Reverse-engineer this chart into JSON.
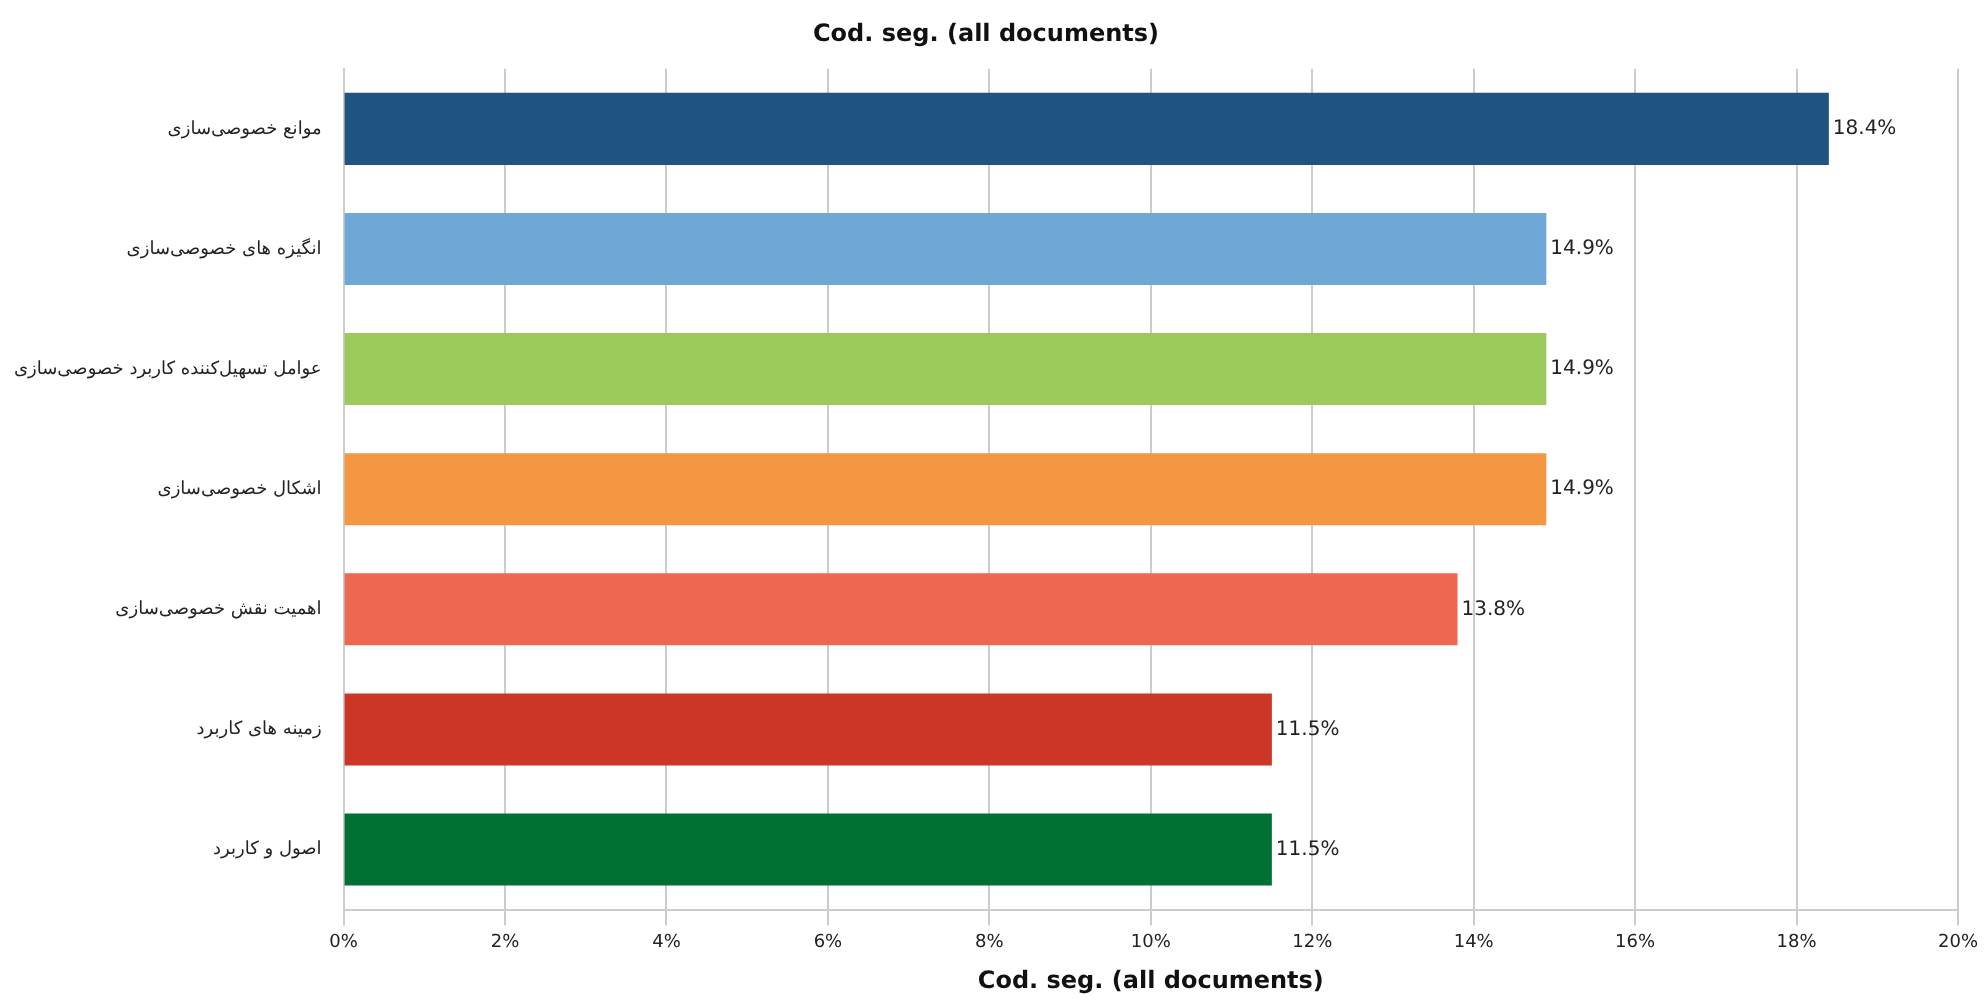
{
  "chart_data": {
    "type": "bar",
    "orientation": "horizontal",
    "title": "Cod. seg. (all documents)",
    "xlabel": "Cod. seg. (all documents)",
    "categories": [
      "موانع خصوصی‌سازی",
      "انگیزه های خصوصی‌سازی",
      "عوامل تسهیل‌کننده کاربرد خصوصی‌سازی",
      "اشکال خصوصی‌سازی",
      "اهمیت نقش خصوصی‌سازی",
      "زمینه های کاربرد",
      "اصول و کاربرد"
    ],
    "values": [
      18.4,
      14.9,
      14.9,
      14.9,
      13.8,
      11.5,
      11.5
    ],
    "colors": [
      "#1f5380",
      "#6fa8d6",
      "#9bc95a",
      "#f39742",
      "#ee6750",
      "#cc3627",
      "#007133"
    ],
    "value_labels": [
      "18.4%",
      "14.9%",
      "14.9%",
      "14.9%",
      "13.8%",
      "11.5%",
      "11.5%"
    ],
    "xlim": [
      0,
      20
    ],
    "xticks": [
      {
        "value": 0,
        "label": "0%"
      },
      {
        "value": 2,
        "label": "2%"
      },
      {
        "value": 4,
        "label": "4%"
      },
      {
        "value": 6,
        "label": "6%"
      },
      {
        "value": 8,
        "label": "8%"
      },
      {
        "value": 10,
        "label": "10%"
      },
      {
        "value": 12,
        "label": "12%"
      },
      {
        "value": 14,
        "label": "14%"
      },
      {
        "value": 16,
        "label": "16%"
      },
      {
        "value": 18,
        "label": "18%"
      },
      {
        "value": 20,
        "label": "20%"
      }
    ],
    "grid": "x"
  }
}
